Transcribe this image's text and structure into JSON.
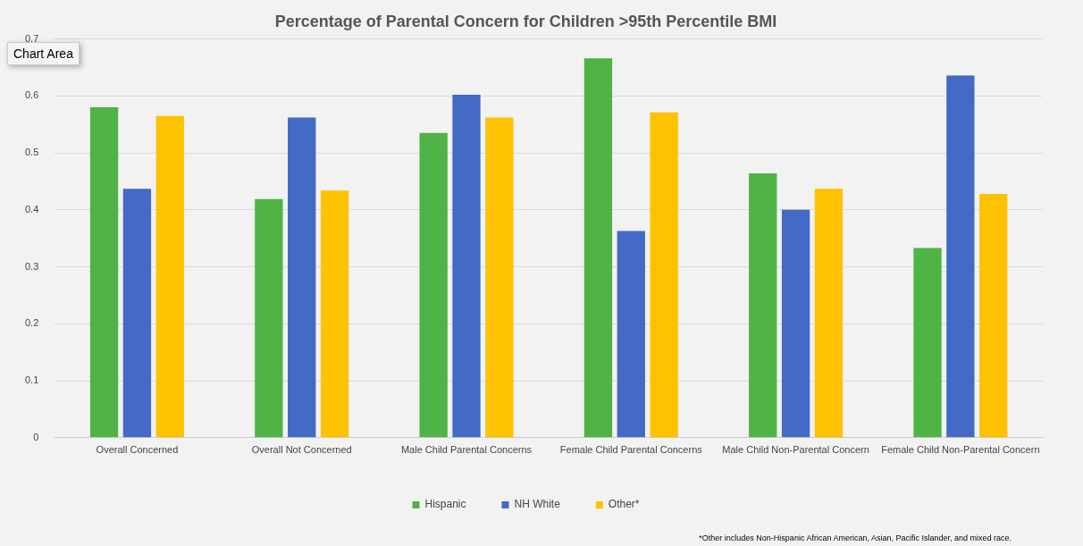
{
  "chart_data": {
    "type": "bar",
    "title": "Percentage of Parental Concern for Children >95th Percentile BMI",
    "categories": [
      "Overall Concerned",
      "Overall Not Concerned",
      "Male Child Parental Concerns",
      "Female Child Parental Concerns",
      "Male Child Non-Parental Concern",
      "Female Child Non-Parental Concern"
    ],
    "series": [
      {
        "name": "Hispanic",
        "color": "#4fb346",
        "values": [
          0.58,
          0.419,
          0.535,
          0.666,
          0.464,
          0.333
        ]
      },
      {
        "name": "NH White",
        "color": "#426ac6",
        "values": [
          0.437,
          0.562,
          0.602,
          0.363,
          0.4,
          0.636
        ]
      },
      {
        "name": "Other*",
        "color": "#fec200",
        "values": [
          0.565,
          0.434,
          0.562,
          0.571,
          0.437,
          0.428
        ]
      }
    ],
    "ylim": [
      0,
      0.7
    ],
    "yticks": [
      0,
      0.1,
      0.2,
      0.3,
      0.4,
      0.5,
      0.6,
      0.7
    ],
    "grid": "y",
    "legend": "bottom",
    "annotations": [
      "Chart Area",
      "*Other includes Non-Hispanic African American, Asian, Pacific Islander, and mixed race."
    ]
  }
}
